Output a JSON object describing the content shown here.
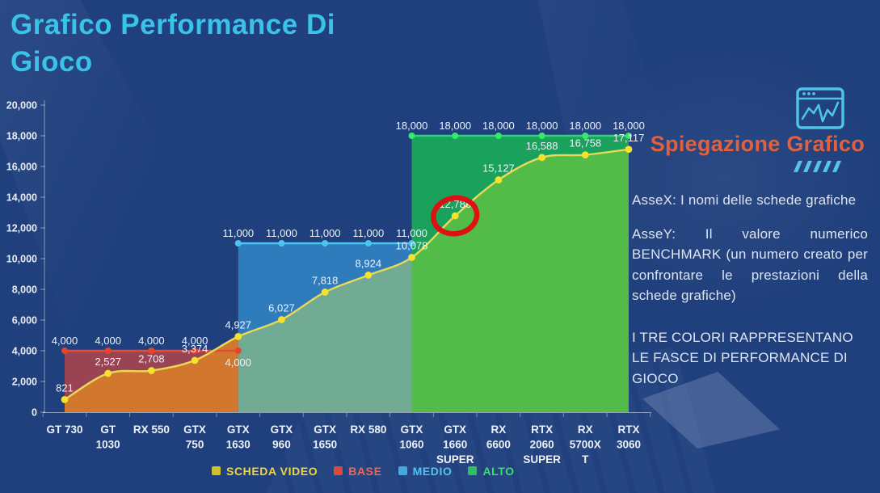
{
  "title": "Grafico Performance Di Gioco",
  "colors": {
    "background": "#20407d",
    "title": "#3ac3e8",
    "panel_heading": "#e2603d",
    "body_text": "#dde4f2",
    "axis_text": "#e9edf6",
    "accent_cyan": "#4fc3ea",
    "annotation_red": "#dd1111"
  },
  "chart_data": {
    "type": "area",
    "title": "Grafico Performance Di Gioco",
    "xlabel": "",
    "ylabel": "",
    "ylim": [
      0,
      20000
    ],
    "ytick_step": 2000,
    "ytick_labels": [
      "0",
      "2,000",
      "4,000",
      "6,000",
      "8,000",
      "10,000",
      "12,000",
      "14,000",
      "16,000",
      "18,000",
      "20,000"
    ],
    "grid": false,
    "legend_position": "bottom",
    "categories": [
      "GT 730",
      "GT 1030",
      "RX 550",
      "GTX 750",
      "GTX 1630",
      "GTX 960",
      "GTX 1650",
      "RX 580",
      "GTX 1060",
      "GTX 1660 SUPER",
      "RX 6600",
      "RTX 2060 SUPER",
      "RX 5700XT",
      "RTX 3060"
    ],
    "category_label_lines": [
      [
        "GT 730"
      ],
      [
        "GT",
        "1030"
      ],
      [
        "RX 550"
      ],
      [
        "GTX",
        "750"
      ],
      [
        "GTX",
        "1630"
      ],
      [
        "GTX",
        "960"
      ],
      [
        "GTX",
        "1650"
      ],
      [
        "RX 580"
      ],
      [
        "GTX",
        "1060"
      ],
      [
        "GTX",
        "1660",
        "SUPER"
      ],
      [
        "RX",
        "6600"
      ],
      [
        "RTX",
        "2060",
        "SUPER"
      ],
      [
        "RX",
        "5700X",
        "T"
      ],
      [
        "RTX",
        "3060"
      ]
    ],
    "series": [
      {
        "name": "SCHEDA VIDEO",
        "type": "smooth-area",
        "values": [
          821,
          2527,
          2708,
          3374,
          4927,
          6027,
          7818,
          8924,
          10078,
          12786,
          15127,
          16588,
          16758,
          17117
        ],
        "value_labels": [
          "821",
          "2,527",
          "2,708",
          "3,374",
          "4,927",
          "6,027",
          "7,818",
          "8,924",
          "10,078",
          "12,786",
          "15,127",
          "16,588",
          "16,758",
          "17,117"
        ],
        "line_color": "#e9da55",
        "marker_color": "#f6e12c",
        "region_fills": [
          {
            "span": [
              0,
              4
            ],
            "color": "#d2782e"
          },
          {
            "span": [
              4,
              8
            ],
            "color": "#72ab94"
          },
          {
            "span": [
              8,
              13
            ],
            "color": "#53bb47"
          }
        ]
      },
      {
        "name": "BASE",
        "type": "band",
        "value": 4000,
        "span": [
          0,
          4
        ],
        "label": "4,000",
        "fill": "#9a4453",
        "line_color": "#e84b35",
        "marker_color": "#e8432b",
        "label_below_indices": [
          4
        ]
      },
      {
        "name": "MEDIO",
        "type": "band",
        "value": 11000,
        "span": [
          4,
          8
        ],
        "label": "11,000",
        "fill": "#2e7cbb",
        "line_color": "#4ac4f0",
        "marker_color": "#4ac4f0",
        "label_below_indices": []
      },
      {
        "name": "ALTO",
        "type": "band",
        "value": 18000,
        "span": [
          8,
          13
        ],
        "label": "18,000",
        "fill": "#1aa15b",
        "line_color": "#2ed573",
        "marker_color": "#35e86e",
        "label_below_indices": []
      }
    ],
    "annotation": {
      "type": "hand-drawn-circle",
      "category": "GTX 1660 SUPER",
      "category_index": 9,
      "value": 12786,
      "color": "#dd1111"
    }
  },
  "legend": {
    "items": [
      {
        "label": "SCHEDA VIDEO",
        "swatch": "#cfc12c",
        "text_color": "#f2d733"
      },
      {
        "label": "BASE",
        "swatch": "#d94b38",
        "text_color": "#ef6553"
      },
      {
        "label": "MEDIO",
        "swatch": "#44a9dc",
        "text_color": "#54c3f0"
      },
      {
        "label": "ALTO",
        "swatch": "#2fc05c",
        "text_color": "#35e06a"
      }
    ]
  },
  "panel": {
    "icon": "line-chart-window-icon",
    "heading": "Spiegazione Grafico",
    "decoration": "/////",
    "paragraphs": [
      "AsseX: I nomi delle schede grafiche",
      "AsseY: Il valore numerico BENCHMARK (un numero creato per confrontare le prestazioni della schede grafiche)",
      "I TRE COLORI RAPPRESENTANO LE FASCE DI PERFORMANCE DI GIOCO"
    ]
  }
}
